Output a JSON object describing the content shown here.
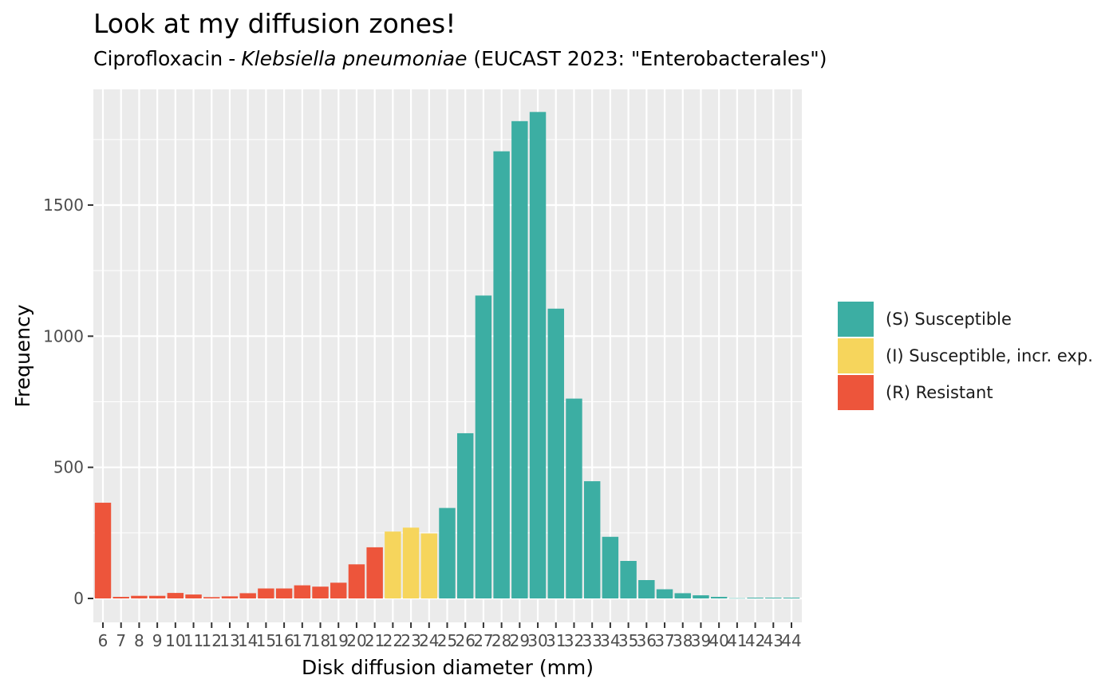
{
  "chart_data": {
    "type": "bar",
    "title": "Look at my diffusion zones!",
    "subtitle": {
      "antibiotic": "Ciprofloxacin",
      "separator": "-",
      "organism": "Klebsiella pneumoniae",
      "guideline": "(EUCAST 2023: \"Enterobacterales\")"
    },
    "xlabel": "Disk diffusion diameter (mm)",
    "ylabel": "Frequency",
    "ylim": [
      0,
      1900
    ],
    "yticks": [
      0,
      500,
      1000,
      1500
    ],
    "grid": true,
    "legend_position": "right",
    "categories": [
      "6",
      "7",
      "8",
      "9",
      "10",
      "11",
      "12",
      "13",
      "14",
      "15",
      "16",
      "17",
      "18",
      "19",
      "20",
      "21",
      "22",
      "23",
      "24",
      "25",
      "26",
      "27",
      "28",
      "29",
      "30",
      "31",
      "32",
      "33",
      "34",
      "35",
      "36",
      "37",
      "38",
      "39",
      "40",
      "41",
      "42",
      "43",
      "44"
    ],
    "values": [
      365,
      6,
      10,
      10,
      21,
      15,
      5,
      8,
      20,
      38,
      38,
      50,
      45,
      60,
      130,
      195,
      255,
      270,
      248,
      345,
      630,
      1155,
      1705,
      1820,
      1855,
      1105,
      762,
      447,
      235,
      143,
      70,
      35,
      20,
      12,
      6,
      1,
      3,
      3,
      3
    ],
    "interpretation": [
      "R",
      "R",
      "R",
      "R",
      "R",
      "R",
      "R",
      "R",
      "R",
      "R",
      "R",
      "R",
      "R",
      "R",
      "R",
      "R",
      "I",
      "I",
      "I",
      "S",
      "S",
      "S",
      "S",
      "S",
      "S",
      "S",
      "S",
      "S",
      "S",
      "S",
      "S",
      "S",
      "S",
      "S",
      "S",
      "S",
      "S",
      "S",
      "S"
    ],
    "legend": [
      {
        "key": "S",
        "label": "(S) Susceptible",
        "color": "#3CAEA3"
      },
      {
        "key": "I",
        "label": "(I) Susceptible, incr. exp.",
        "color": "#F6D55C"
      },
      {
        "key": "R",
        "label": "(R) Resistant",
        "color": "#ED553B"
      }
    ]
  }
}
